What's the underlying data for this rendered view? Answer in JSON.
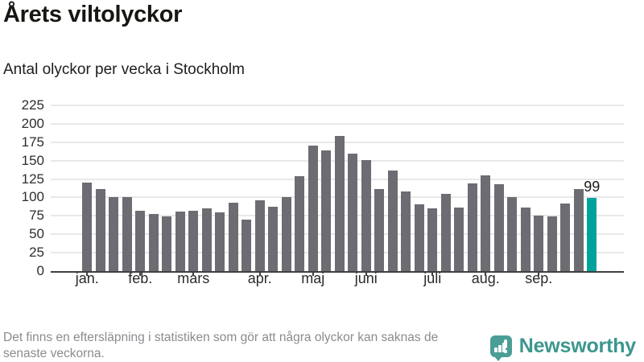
{
  "header": {
    "title": "Årets viltolyckor",
    "subtitle": "Antal olyckor per vecka i Stockholm"
  },
  "chart_data": {
    "type": "bar",
    "title": "Årets viltolyckor",
    "subtitle": "Antal olyckor per vecka i Stockholm",
    "ylabel": "",
    "xlabel": "",
    "ylim": [
      0,
      225
    ],
    "yticks": [
      0,
      25,
      50,
      75,
      100,
      125,
      150,
      175,
      200,
      225
    ],
    "grid": true,
    "legend": "none",
    "categories_unit": "vecka",
    "values": [
      120,
      111,
      100,
      100,
      82,
      78,
      74,
      81,
      82,
      85,
      80,
      93,
      70,
      96,
      87,
      101,
      129,
      170,
      164,
      183,
      160,
      151,
      111,
      137,
      108,
      91,
      85,
      105,
      86,
      119,
      130,
      118,
      100,
      86,
      75,
      74,
      92,
      111,
      99
    ],
    "highlight_index": 38,
    "highlight_value_label": "99",
    "month_ticks": [
      {
        "label": "jan.",
        "bar": 1
      },
      {
        "label": "feb.",
        "bar": 5
      },
      {
        "label": "mars",
        "bar": 9
      },
      {
        "label": "apr.",
        "bar": 14
      },
      {
        "label": "maj",
        "bar": 18
      },
      {
        "label": "juni",
        "bar": 22
      },
      {
        "label": "juli",
        "bar": 27
      },
      {
        "label": "aug.",
        "bar": 31
      },
      {
        "label": "sep.",
        "bar": 35
      }
    ],
    "colors": {
      "bar": "#6d6c72",
      "highlight": "#00a39c",
      "gridline": "#e8e8ea",
      "axis": "#404040"
    }
  },
  "footer": {
    "note_line1": "Det finns en eftersläpning i statistiken som gör att några olyckor kan saknas de",
    "note_line2": "senaste veckorna.",
    "brand": "Newsworthy",
    "brand_color": "#3c968e"
  }
}
